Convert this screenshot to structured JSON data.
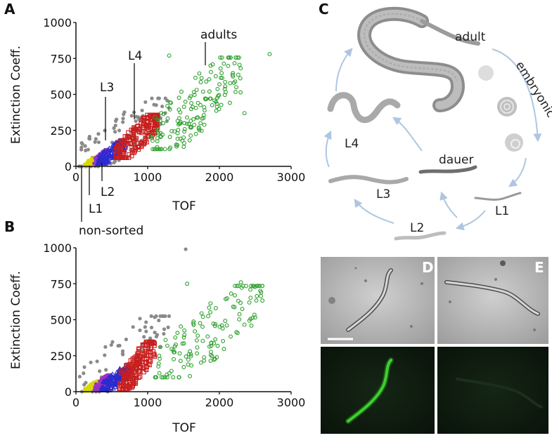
{
  "panels": {
    "A": "A",
    "B": "B",
    "C": "C",
    "D": "D",
    "E": "E"
  },
  "chart_data": [
    {
      "panel": "A",
      "type": "scatter",
      "xlabel": "TOF",
      "ylabel": "Extinction Coeff.",
      "xlim": [
        0,
        3000
      ],
      "ylim": [
        0,
        1000
      ],
      "xticks": [
        "0",
        "1000",
        "2000",
        "3000"
      ],
      "yticks": [
        "0",
        "250",
        "500",
        "750",
        "1000"
      ],
      "annotations": [
        "adults",
        "L4",
        "L3",
        "L2",
        "L1",
        "non-sorted"
      ],
      "series": [
        {
          "name": "non-sorted",
          "color": "#8a8a8a",
          "marker": "dot",
          "tof_range": [
            40,
            1300
          ],
          "ext_range": [
            0,
            450
          ],
          "n": 90
        },
        {
          "name": "L1",
          "color": "#d8d800",
          "marker": "dot",
          "tof_range": [
            120,
            300
          ],
          "ext_range": [
            5,
            60
          ],
          "n": 60
        },
        {
          "name": "L2",
          "color": "#9b32c8",
          "marker": "dot",
          "tof_range": [
            250,
            450
          ],
          "ext_range": [
            20,
            110
          ],
          "n": 80
        },
        {
          "name": "L3",
          "color": "#2a2ad0",
          "marker": "triangle-open",
          "tof_range": [
            300,
            700
          ],
          "ext_range": [
            20,
            170
          ],
          "n": 130
        },
        {
          "name": "L4",
          "color": "#c81e1e",
          "marker": "square-open",
          "tof_range": [
            550,
            1150
          ],
          "ext_range": [
            60,
            340
          ],
          "n": 210
        },
        {
          "name": "adults",
          "color": "#2ea02e",
          "marker": "circle-open",
          "tof_range": [
            1050,
            2300
          ],
          "ext_range": [
            120,
            720
          ],
          "n": 170
        }
      ],
      "outliers": [
        {
          "series": "adults",
          "x": 2700,
          "y": 780
        },
        {
          "series": "adults",
          "x": 1300,
          "y": 770
        },
        {
          "series": "adults",
          "x": 2350,
          "y": 370
        }
      ]
    },
    {
      "panel": "B",
      "type": "scatter",
      "xlabel": "TOF",
      "ylabel": "Extinction Coeff.",
      "xlim": [
        0,
        3000
      ],
      "ylim": [
        0,
        1000
      ],
      "xticks": [
        "0",
        "1000",
        "2000",
        "3000"
      ],
      "yticks": [
        "0",
        "250",
        "500",
        "750",
        "1000"
      ],
      "series": [
        {
          "name": "non-sorted",
          "color": "#8a8a8a",
          "marker": "dot",
          "tof_range": [
            40,
            1300
          ],
          "ext_range": [
            0,
            500
          ],
          "n": 70
        },
        {
          "name": "L1",
          "color": "#d8d800",
          "marker": "dot",
          "tof_range": [
            120,
            320
          ],
          "ext_range": [
            5,
            70
          ],
          "n": 70
        },
        {
          "name": "L2",
          "color": "#9b32c8",
          "marker": "dot",
          "tof_range": [
            260,
            480
          ],
          "ext_range": [
            10,
            110
          ],
          "n": 90
        },
        {
          "name": "L3",
          "color": "#2a2ad0",
          "marker": "triangle-open",
          "tof_range": [
            350,
            750
          ],
          "ext_range": [
            10,
            160
          ],
          "n": 130
        },
        {
          "name": "L4",
          "color": "#c81e1e",
          "marker": "square-open",
          "tof_range": [
            600,
            1100
          ],
          "ext_range": [
            20,
            330
          ],
          "n": 200
        },
        {
          "name": "adults",
          "color": "#2ea02e",
          "marker": "circle-open",
          "tof_range": [
            1100,
            2600
          ],
          "ext_range": [
            100,
            700
          ],
          "n": 140
        }
      ],
      "outliers": [
        {
          "series": "non-sorted",
          "x": 1530,
          "y": 990
        },
        {
          "series": "adults",
          "x": 1550,
          "y": 750
        },
        {
          "series": "adults",
          "x": 2300,
          "y": 760
        }
      ]
    }
  ],
  "lifecycle": {
    "stages": [
      "adult",
      "embryonic",
      "L1",
      "L2",
      "L3",
      "L4",
      "dauer"
    ]
  },
  "colors": {
    "worm": "#9a9a9a",
    "arrow": "#aec6e0",
    "gfp": "#3ecf2e",
    "bright_field": "#b9b9b9",
    "dark_field": "#0f1a0f"
  }
}
